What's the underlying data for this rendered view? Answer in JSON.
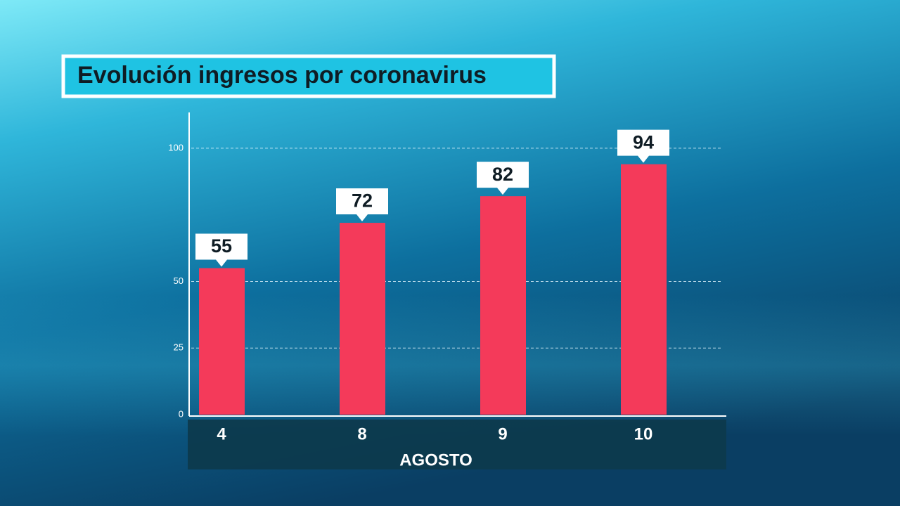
{
  "chart_data": {
    "type": "bar",
    "title": "Evolución ingresos por coronavirus",
    "categories": [
      "4",
      "8",
      "9",
      "10"
    ],
    "values": [
      55,
      72,
      82,
      94
    ],
    "color": "#f43a5a",
    "xlabel": "AGOSTO",
    "ylim": [
      0,
      110
    ],
    "yticks": [
      0,
      25,
      50,
      100
    ],
    "grid": true
  }
}
